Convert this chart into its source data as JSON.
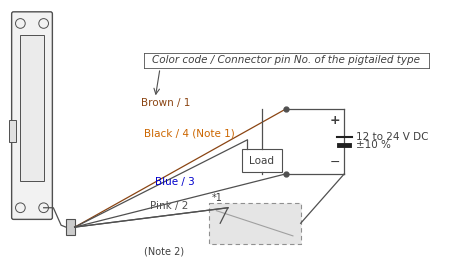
{
  "bg_color": "#ffffff",
  "line_color": "#505050",
  "text_color": "#404040",
  "brown_color": "#8B4513",
  "black_color": "#505050",
  "blue_color": "#0000CC",
  "pink_color": "#C06060",
  "orange_color": "#CC6600",
  "annotation_color": "#505050",
  "title_annotation": "Color code / Connector pin No. of the pigtailed type",
  "wire_labels": [
    {
      "text": "Brown / 1",
      "color": "#8B4513"
    },
    {
      "text": "Black / 4 (Note 1)",
      "color": "#CC6600"
    },
    {
      "text": "Blue / 3",
      "color": "#0000CC"
    },
    {
      "text": "Pink / 2",
      "color": "#C06060"
    }
  ],
  "note2_text": "(Note 2)",
  "star1_text": "*1",
  "load_text": "Load",
  "voltage_line1": "12 to 24 V DC",
  "voltage_line2": "±10 %",
  "plus_text": "+",
  "minus_text": "−"
}
